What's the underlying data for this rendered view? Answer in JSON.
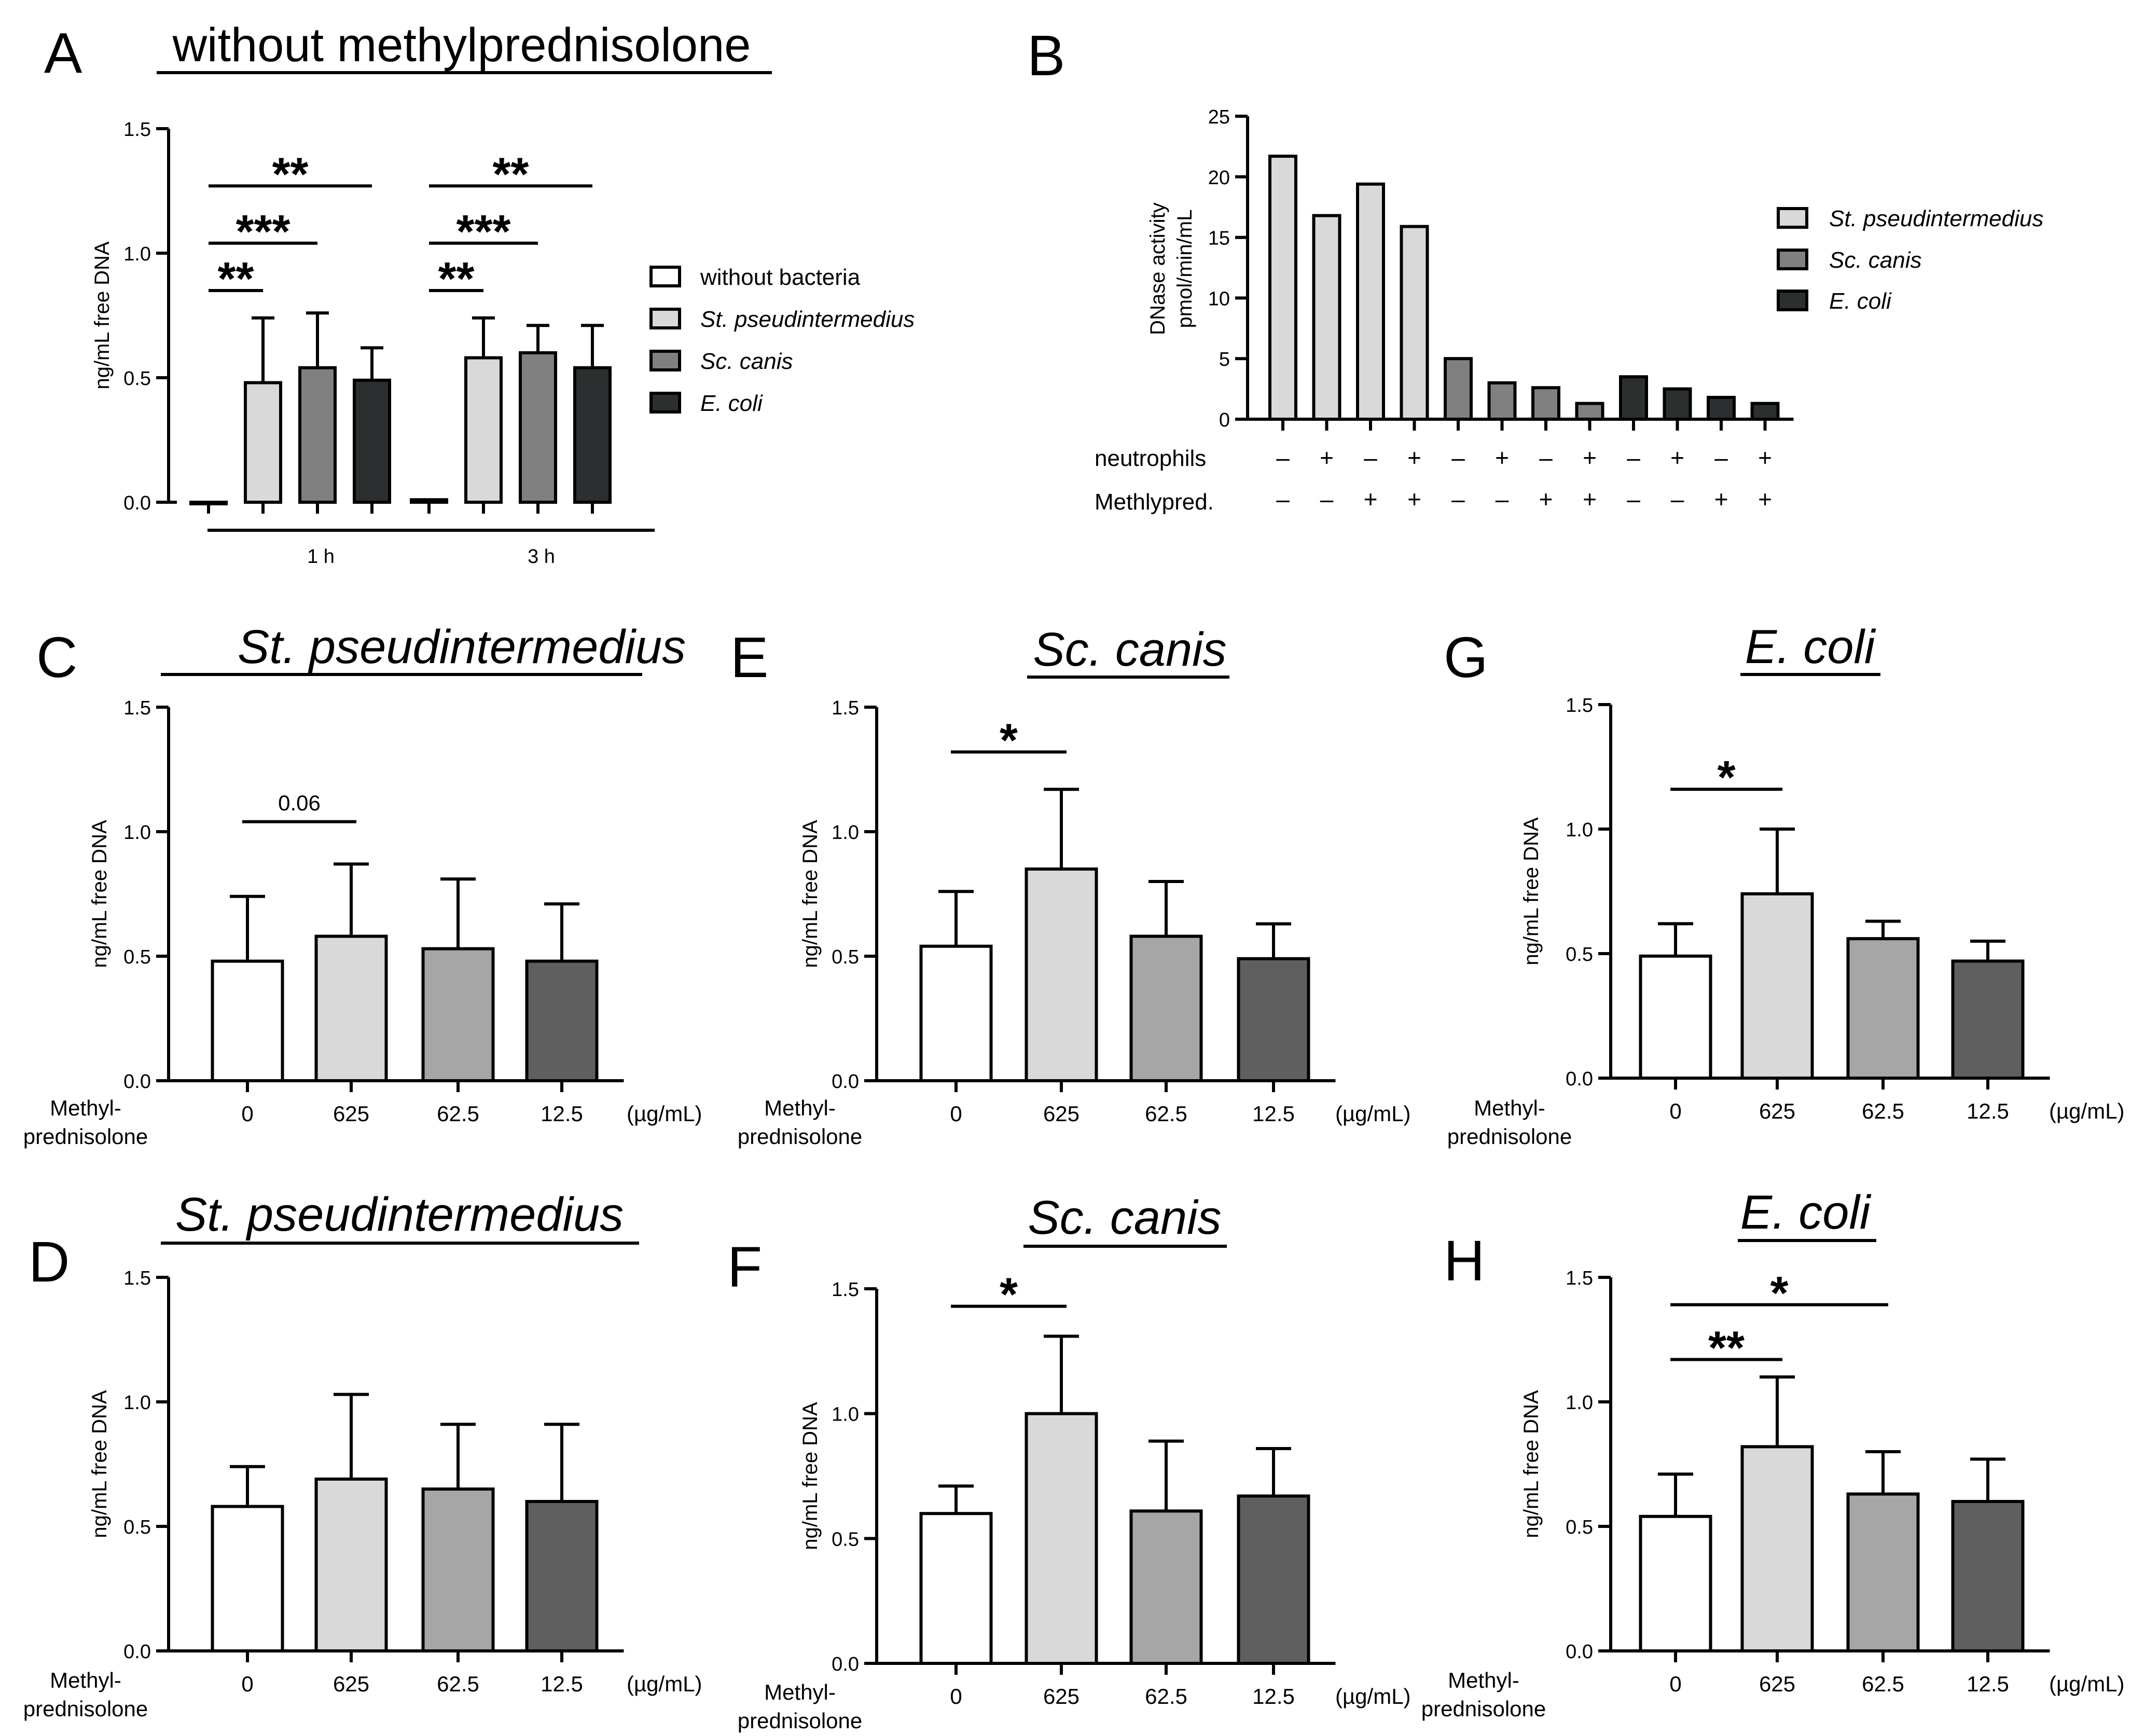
{
  "figure": {
    "colors": {
      "white": "#ffffff",
      "light": "#d9d9d9",
      "medium": "#a6a6a6",
      "mediumA": "#808080",
      "dark": "#5f5f5f",
      "darkA": "#2b2f2f",
      "black": "#000000"
    }
  },
  "chart_data": [
    {
      "id": "A",
      "panel_label": "A",
      "type": "bar",
      "title": "without methylprednisolone",
      "ylabel": "ng/mL free DNA",
      "ylim": [
        0,
        1.5
      ],
      "yticks": [
        "0.0",
        "0.5",
        "1.0",
        "1.5"
      ],
      "groups": [
        "1 h",
        "3 h"
      ],
      "series": [
        {
          "name": "without bacteria",
          "italic": false,
          "color": "#ffffff",
          "values": [
            0.0,
            0.01
          ],
          "errors": [
            0,
            0
          ]
        },
        {
          "name": "St. pseudintermedius",
          "italic": true,
          "color": "#d9d9d9",
          "values": [
            0.48,
            0.58
          ],
          "errors": [
            0.26,
            0.16
          ]
        },
        {
          "name": "Sc. canis",
          "italic": true,
          "color": "#808080",
          "values": [
            0.54,
            0.6
          ],
          "errors": [
            0.22,
            0.11
          ]
        },
        {
          "name": "E. coli",
          "italic": true,
          "color": "#2b2f2f",
          "values": [
            0.49,
            0.54
          ],
          "errors": [
            0.13,
            0.17
          ]
        }
      ],
      "annotations": [
        {
          "group": 0,
          "from": 0,
          "to": 1,
          "y": 0.85,
          "text": "**"
        },
        {
          "group": 0,
          "from": 0,
          "to": 2,
          "y": 1.04,
          "text": "***"
        },
        {
          "group": 0,
          "from": 0,
          "to": 3,
          "y": 1.27,
          "text": "**"
        },
        {
          "group": 1,
          "from": 0,
          "to": 1,
          "y": 0.85,
          "text": "**"
        },
        {
          "group": 1,
          "from": 0,
          "to": 2,
          "y": 1.04,
          "text": "***"
        },
        {
          "group": 1,
          "from": 0,
          "to": 3,
          "y": 1.27,
          "text": "**"
        }
      ]
    },
    {
      "id": "B",
      "panel_label": "B",
      "type": "bar",
      "ylabel_line1": "DNase activity",
      "ylabel_line2": "pmol/min/mL",
      "ylim": [
        0,
        25
      ],
      "yticks": [
        "0",
        "5",
        "10",
        "15",
        "20",
        "25"
      ],
      "values": [
        21.7,
        16.8,
        19.4,
        15.9,
        5.0,
        3.0,
        2.6,
        1.3,
        3.5,
        2.5,
        1.8,
        1.3
      ],
      "bar_series": [
        0,
        0,
        0,
        0,
        1,
        1,
        1,
        1,
        2,
        2,
        2,
        2
      ],
      "series": [
        {
          "name": "St. pseudintermedius",
          "color": "#d9d9d9"
        },
        {
          "name": "Sc. canis",
          "color": "#808080"
        },
        {
          "name": "E. coli",
          "color": "#2b2f2f"
        }
      ],
      "row_labels": [
        "neutrophils",
        "Methlypred."
      ],
      "neutrophils": [
        "–",
        "+",
        "–",
        "+",
        "–",
        "+",
        "–",
        "+",
        "–",
        "+",
        "–",
        "+"
      ],
      "methylpred": [
        "–",
        "–",
        "+",
        "+",
        "–",
        "–",
        "+",
        "+",
        "–",
        "–",
        "+",
        "+"
      ]
    },
    {
      "id": "C",
      "panel_label": "C",
      "type": "bar",
      "title": "St. pseudintermedius",
      "ylabel": "ng/mL free DNA",
      "ylim": [
        0,
        1.5
      ],
      "yticks": [
        "0.0",
        "0.5",
        "1.0",
        "1.5"
      ],
      "categories": [
        "0",
        "625",
        "62.5",
        "12.5"
      ],
      "xlabel_line1": "Methyl-",
      "xlabel_line2": "prednisolone",
      "unit": "(µg/mL)",
      "values": [
        0.48,
        0.58,
        0.53,
        0.48
      ],
      "errors": [
        0.26,
        0.29,
        0.28,
        0.23
      ],
      "colors": [
        "#ffffff",
        "#d9d9d9",
        "#a6a6a6",
        "#5f5f5f"
      ],
      "annotations": [
        {
          "from": 0,
          "to": 1,
          "y": 1.04,
          "text": "0.06"
        }
      ]
    },
    {
      "id": "D",
      "panel_label": "D",
      "type": "bar",
      "title": "St. pseudintermedius",
      "ylabel": "ng/mL free DNA",
      "ylim": [
        0,
        1.5
      ],
      "yticks": [
        "0.0",
        "0.5",
        "1.0",
        "1.5"
      ],
      "categories": [
        "0",
        "625",
        "62.5",
        "12.5"
      ],
      "xlabel_line1": "Methyl-",
      "xlabel_line2": "prednisolone",
      "unit": "(µg/mL)",
      "values": [
        0.58,
        0.69,
        0.65,
        0.6
      ],
      "errors": [
        0.16,
        0.34,
        0.26,
        0.31
      ],
      "colors": [
        "#ffffff",
        "#d9d9d9",
        "#a6a6a6",
        "#5f5f5f"
      ],
      "annotations": []
    },
    {
      "id": "E",
      "panel_label": "E",
      "type": "bar",
      "title": "Sc. canis",
      "ylabel": "ng/mL free DNA",
      "ylim": [
        0,
        1.5
      ],
      "yticks": [
        "0.0",
        "0.5",
        "1.0",
        "1.5"
      ],
      "categories": [
        "0",
        "625",
        "62.5",
        "12.5"
      ],
      "xlabel_line1": "Methyl-",
      "xlabel_line2": "prednisolone",
      "unit": "(µg/mL)",
      "values": [
        0.54,
        0.85,
        0.58,
        0.49
      ],
      "errors": [
        0.22,
        0.32,
        0.22,
        0.14
      ],
      "colors": [
        "#ffffff",
        "#d9d9d9",
        "#a6a6a6",
        "#5f5f5f"
      ],
      "annotations": [
        {
          "from": 0,
          "to": 1,
          "y": 1.32,
          "text": "*"
        }
      ]
    },
    {
      "id": "F",
      "panel_label": "F",
      "type": "bar",
      "title": "Sc. canis",
      "ylabel": "ng/mL free DNA",
      "ylim": [
        0,
        1.5
      ],
      "yticks": [
        "0.0",
        "0.5",
        "1.0",
        "1.5"
      ],
      "categories": [
        "0",
        "625",
        "62.5",
        "12.5"
      ],
      "xlabel_line1": "Methyl-",
      "xlabel_line2": "prednisolone",
      "unit": "(µg/mL)",
      "values": [
        0.6,
        1.0,
        0.61,
        0.67
      ],
      "errors": [
        0.11,
        0.31,
        0.28,
        0.19
      ],
      "colors": [
        "#ffffff",
        "#d9d9d9",
        "#a6a6a6",
        "#5f5f5f"
      ],
      "annotations": [
        {
          "from": 0,
          "to": 1,
          "y": 1.43,
          "text": "*"
        }
      ]
    },
    {
      "id": "G",
      "panel_label": "G",
      "type": "bar",
      "title": "E. coli",
      "ylabel": "ng/mL free DNA",
      "ylim": [
        0,
        1.5
      ],
      "yticks": [
        "0.0",
        "0.5",
        "1.0",
        "1.5"
      ],
      "categories": [
        "0",
        "625",
        "62.5",
        "12.5"
      ],
      "xlabel_line1": "Methyl-",
      "xlabel_line2": "prednisolone",
      "unit": "(µg/mL)",
      "values": [
        0.49,
        0.74,
        0.56,
        0.47
      ],
      "errors": [
        0.13,
        0.26,
        0.07,
        0.08
      ],
      "colors": [
        "#ffffff",
        "#d9d9d9",
        "#a6a6a6",
        "#5f5f5f"
      ],
      "annotations": [
        {
          "from": 0,
          "to": 1,
          "y": 1.16,
          "text": "*"
        }
      ]
    },
    {
      "id": "H",
      "panel_label": "H",
      "type": "bar",
      "title": "E. coli",
      "ylabel": "ng/mL free DNA",
      "ylim": [
        0,
        1.5
      ],
      "yticks": [
        "0.0",
        "0.5",
        "1.0",
        "1.5"
      ],
      "categories": [
        "0",
        "625",
        "62.5",
        "12.5"
      ],
      "xlabel_line1": "Methyl-",
      "xlabel_line2": "prednisolone",
      "unit": "(µg/mL)",
      "values": [
        0.54,
        0.82,
        0.63,
        0.6
      ],
      "errors": [
        0.17,
        0.28,
        0.17,
        0.17
      ],
      "colors": [
        "#ffffff",
        "#d9d9d9",
        "#a6a6a6",
        "#5f5f5f"
      ],
      "annotations": [
        {
          "from": 0,
          "to": 1,
          "y": 1.17,
          "text": "**"
        },
        {
          "from": 0,
          "to": 2,
          "y": 1.39,
          "text": "*"
        }
      ]
    }
  ]
}
